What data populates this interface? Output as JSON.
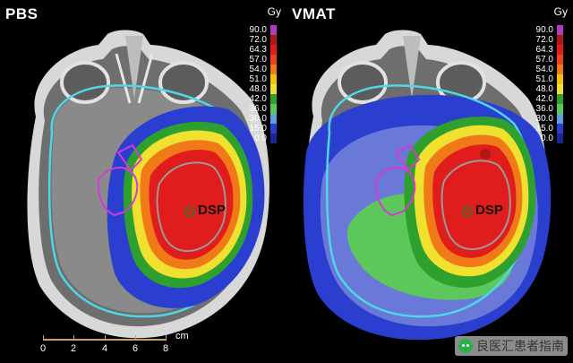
{
  "panels": [
    {
      "title": "PBS",
      "roi_label": "DSP",
      "unit": "Gy"
    },
    {
      "title": "VMAT",
      "roi_label": "DSP",
      "unit": "Gy"
    }
  ],
  "colorbar": {
    "levels": [
      {
        "label": "90.0",
        "color": "#b03ab8"
      },
      {
        "label": "72.0",
        "color": "#b01818"
      },
      {
        "label": "64.3",
        "color": "#e01c1c"
      },
      {
        "label": "57.0",
        "color": "#f04020"
      },
      {
        "label": "54.0",
        "color": "#f07a18"
      },
      {
        "label": "51.0",
        "color": "#f2c20a"
      },
      {
        "label": "48.0",
        "color": "#f0e030"
      },
      {
        "label": "42.0",
        "color": "#2ea02e"
      },
      {
        "label": "36.0",
        "color": "#5cc85c"
      },
      {
        "label": "30.0",
        "color": "#5aa0e0"
      },
      {
        "label": "15.0",
        "color": "#2a3fd0"
      },
      {
        "label": "0.0",
        "color": "#1a2590"
      }
    ]
  },
  "scale": {
    "unit": "cm",
    "ticks": [
      "0",
      "2",
      "4",
      "6",
      "8"
    ]
  },
  "watermark": {
    "text": "良医汇患者指南",
    "icon": "wechat-icon"
  }
}
